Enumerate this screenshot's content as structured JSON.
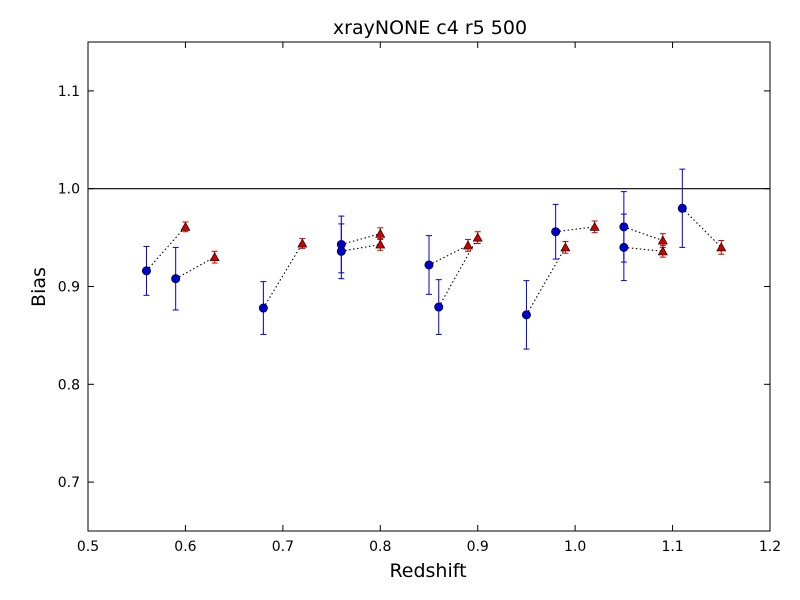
{
  "chart_data": {
    "type": "scatter",
    "title": "xrayNONE c4 r5 500",
    "xlabel": "Redshift",
    "ylabel": "Bias",
    "xlim": [
      0.5,
      1.2
    ],
    "ylim": [
      0.65,
      1.15
    ],
    "xticks": [
      "0.5",
      "0.6",
      "0.7",
      "0.8",
      "0.9",
      "1.0",
      "1.1",
      "1.2"
    ],
    "yticks": [
      "0.7",
      "0.8",
      "0.9",
      "1.0",
      "1.1"
    ],
    "reference_line_y": 1.0,
    "grid": false,
    "legend": "none",
    "colors": {
      "circle": "#0000cc",
      "triangle": "#cc0000",
      "line": "#000000"
    },
    "series": [
      {
        "marker": "circle",
        "points": [
          {
            "x": 0.56,
            "y": 0.916,
            "err": 0.025
          },
          {
            "x": 0.59,
            "y": 0.908,
            "err": 0.032
          },
          {
            "x": 0.68,
            "y": 0.878,
            "err": 0.027
          },
          {
            "x": 0.76,
            "y": 0.943,
            "err": 0.029
          },
          {
            "x": 0.76,
            "y": 0.936,
            "err": 0.028
          },
          {
            "x": 0.85,
            "y": 0.922,
            "err": 0.03
          },
          {
            "x": 0.86,
            "y": 0.879,
            "err": 0.028
          },
          {
            "x": 0.95,
            "y": 0.871,
            "err": 0.035
          },
          {
            "x": 0.98,
            "y": 0.956,
            "err": 0.028
          },
          {
            "x": 1.05,
            "y": 0.961,
            "err": 0.036
          },
          {
            "x": 1.05,
            "y": 0.94,
            "err": 0.034
          },
          {
            "x": 1.11,
            "y": 0.98,
            "err": 0.04
          }
        ]
      },
      {
        "marker": "triangle",
        "points": [
          {
            "x": 0.6,
            "y": 0.961,
            "err": 0.005
          },
          {
            "x": 0.63,
            "y": 0.93,
            "err": 0.006
          },
          {
            "x": 0.72,
            "y": 0.944,
            "err": 0.005
          },
          {
            "x": 0.8,
            "y": 0.954,
            "err": 0.006
          },
          {
            "x": 0.8,
            "y": 0.943,
            "err": 0.006
          },
          {
            "x": 0.89,
            "y": 0.942,
            "err": 0.006
          },
          {
            "x": 0.9,
            "y": 0.95,
            "err": 0.006
          },
          {
            "x": 0.99,
            "y": 0.94,
            "err": 0.006
          },
          {
            "x": 1.02,
            "y": 0.961,
            "err": 0.006
          },
          {
            "x": 1.09,
            "y": 0.947,
            "err": 0.007
          },
          {
            "x": 1.09,
            "y": 0.936,
            "err": 0.006
          },
          {
            "x": 1.15,
            "y": 0.94,
            "err": 0.007
          }
        ]
      }
    ],
    "dotted_links": [
      [
        0,
        0
      ],
      [
        1,
        1
      ],
      [
        2,
        2
      ],
      [
        3,
        3
      ],
      [
        4,
        4
      ],
      [
        5,
        5
      ],
      [
        6,
        6
      ],
      [
        7,
        7
      ],
      [
        8,
        8
      ],
      [
        9,
        9
      ],
      [
        10,
        10
      ],
      [
        11,
        11
      ]
    ]
  }
}
